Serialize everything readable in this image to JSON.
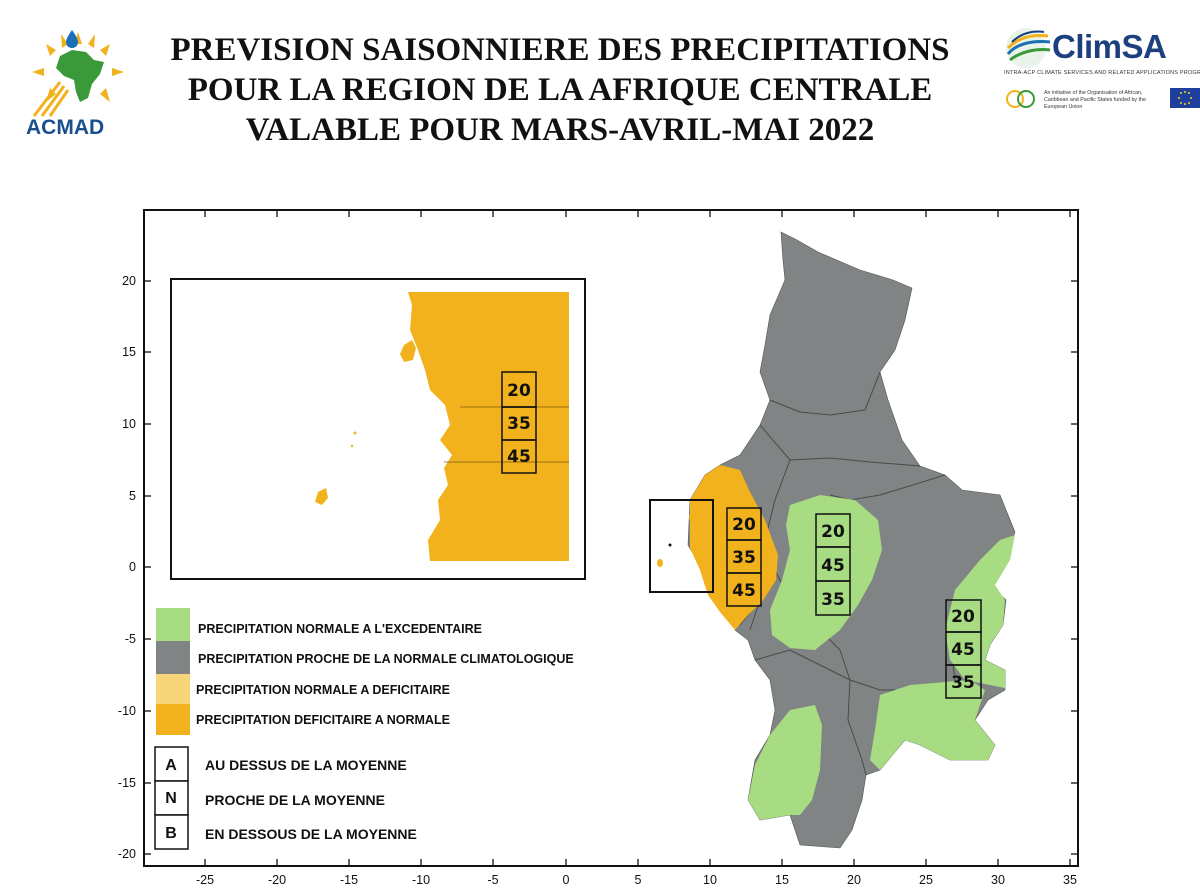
{
  "header": {
    "title_lines": [
      "PREVISION SAISONNIERE DES PRECIPITATIONS",
      "POUR LA REGION DE LA AFRIQUE CENTRALE",
      "VALABLE POUR MARS-AVRIL-MAI 2022"
    ],
    "logo_left": "ACMAD",
    "logo_right": "ClimSA",
    "logo_right_subtitle": "INTRA-ACP CLIMATE SERVICES AND RELATED APPLICATIONS PROGRAMME",
    "logo_right_initiative": "An initiative of the Organisation of African, Caribbean and Pacific States funded by the European Union"
  },
  "axes": {
    "x_ticks": [
      "-25",
      "-20",
      "-15",
      "-10",
      "-5",
      "0",
      "5",
      "10",
      "15",
      "20",
      "25",
      "30",
      "35"
    ],
    "y_ticks": [
      "20",
      "15",
      "10",
      "5",
      "0",
      "-5",
      "-10",
      "-15",
      "-20"
    ]
  },
  "colors": {
    "above_normal": "#a8dc83",
    "near_normal": "#808485",
    "normal_to_below_light": "#f7d67a",
    "below_normal": "#f2b21d"
  },
  "forecast_boxes": [
    {
      "zone": "west",
      "A": "20",
      "N": "35",
      "B": "45"
    },
    {
      "zone": "central",
      "A": "20",
      "N": "45",
      "B": "35"
    },
    {
      "zone": "east",
      "A": "20",
      "N": "45",
      "B": "35"
    },
    {
      "zone": "inset",
      "A": "20",
      "N": "35",
      "B": "45"
    }
  ],
  "legend": {
    "categories": [
      {
        "label": "PRECIPITATION NORMALE A L'EXCEDENTAIRE"
      },
      {
        "label": "PRECIPITATION PROCHE DE LA NORMALE CLIMATOLOGIQUE"
      },
      {
        "label": "PRECIPITATION  NORMALE A DEFICITAIRE"
      },
      {
        "label": "PRECIPITATION DEFICITAIRE A NORMALE"
      }
    ],
    "letters": [
      {
        "letter": "A",
        "label": "AU DESSUS DE LA MOYENNE"
      },
      {
        "letter": "N",
        "label": "PROCHE DE LA MOYENNE"
      },
      {
        "letter": "B",
        "label": "EN DESSOUS DE LA MOYENNE"
      }
    ]
  }
}
